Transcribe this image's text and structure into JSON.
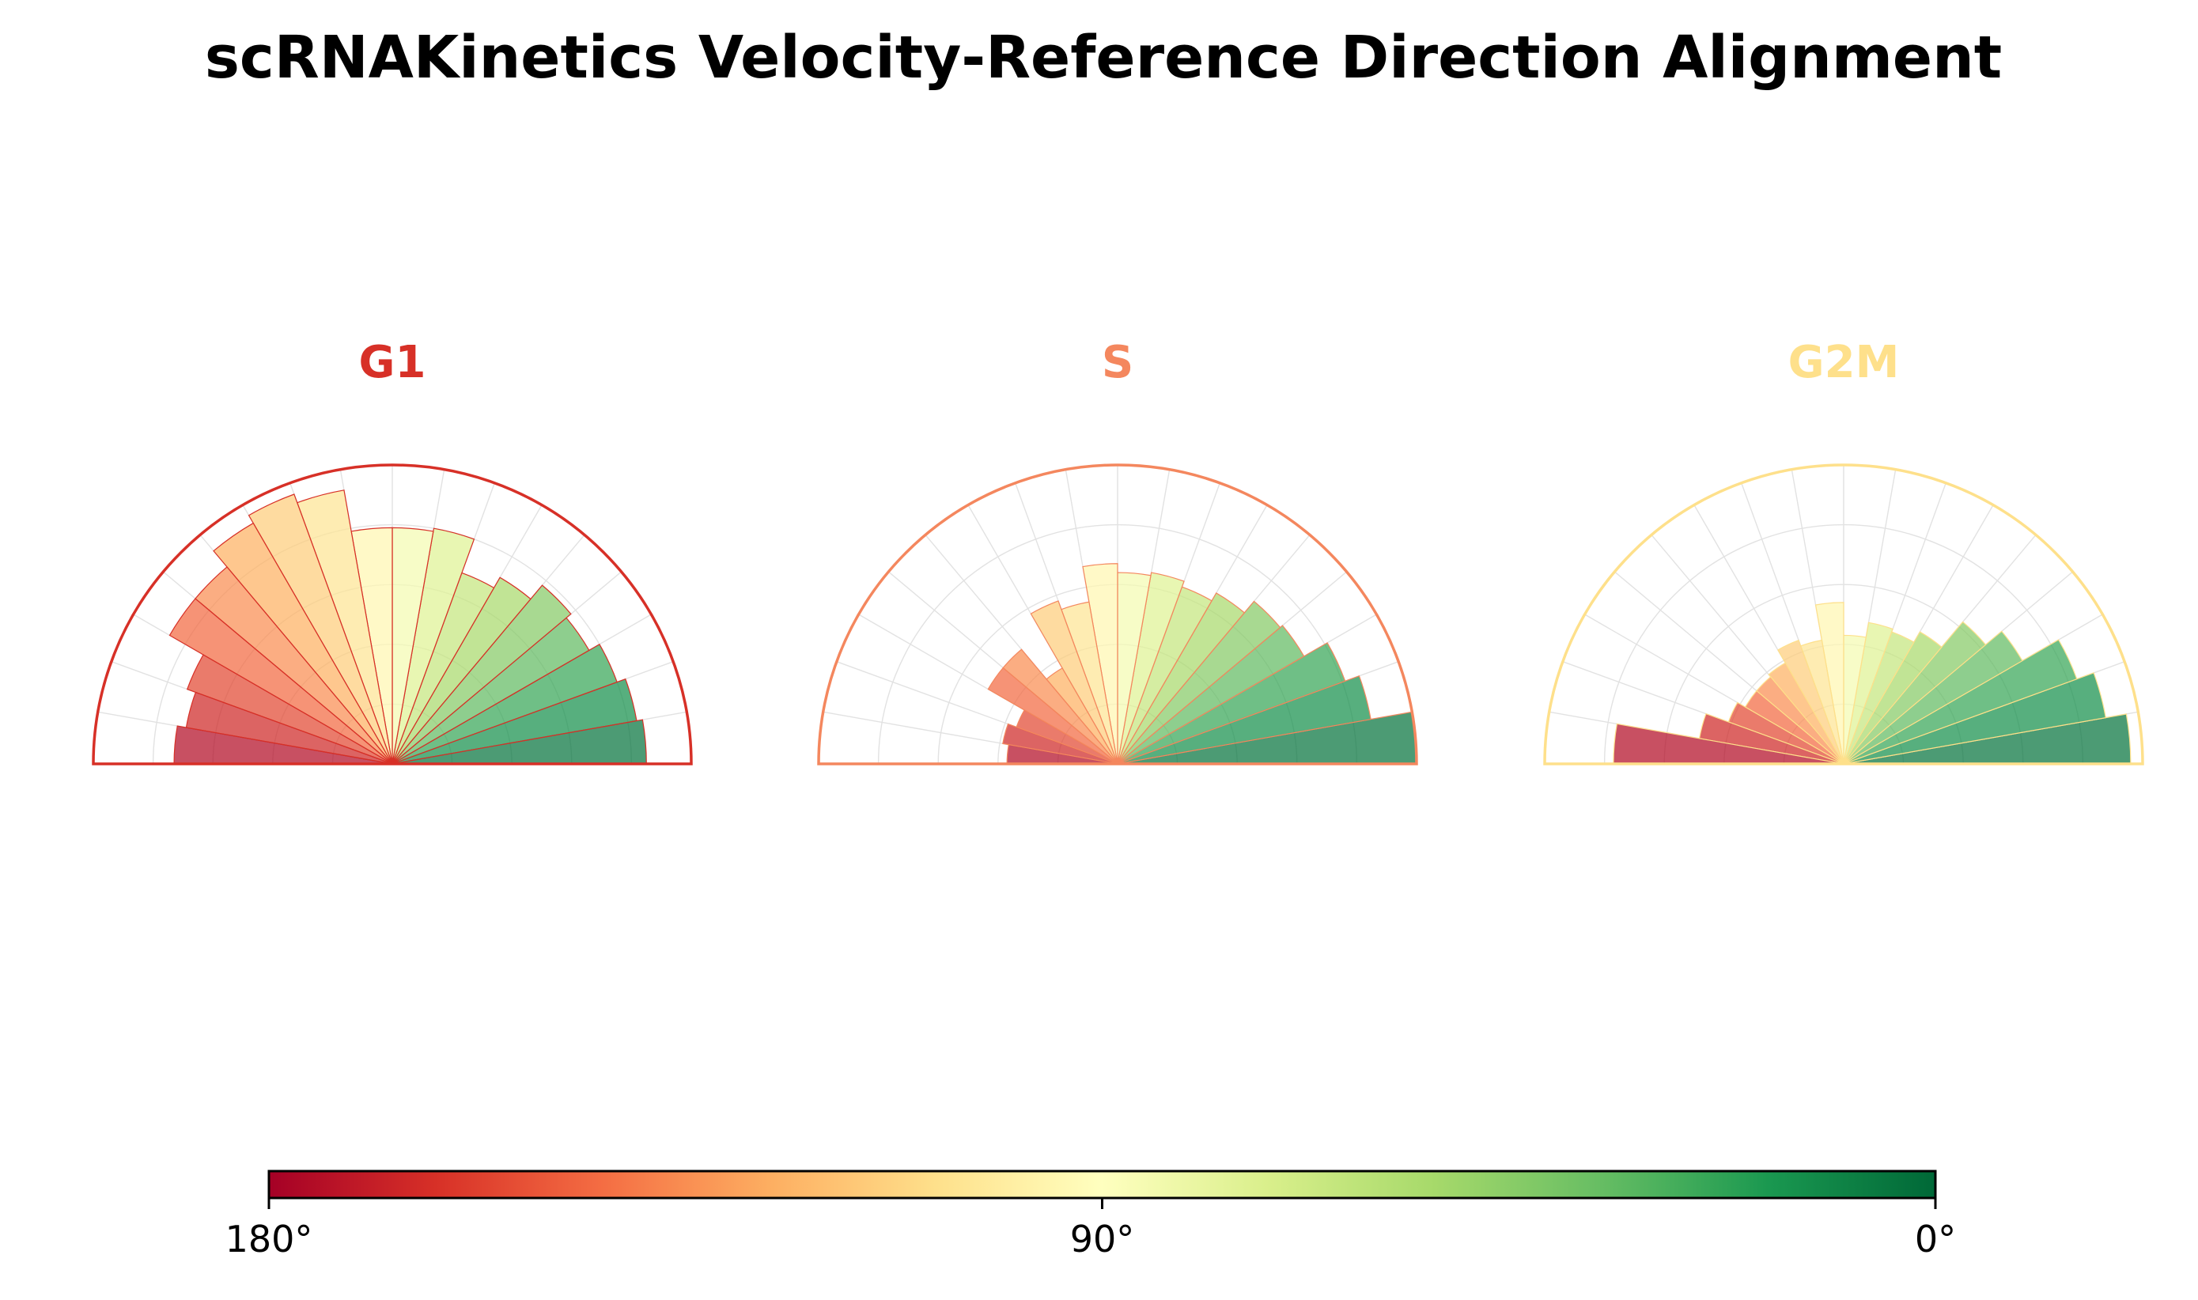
{
  "chart_data": {
    "type": "polar-bar",
    "title": "scRNAKinetics Velocity-Reference Direction Alignment",
    "angle_unit": "degrees",
    "angle_range": [
      0,
      180
    ],
    "bin_width": 10,
    "bin_starts": [
      0,
      10,
      20,
      30,
      40,
      50,
      60,
      70,
      80,
      90,
      100,
      110,
      120,
      130,
      140,
      150,
      160,
      170
    ],
    "radius_max": 1.0,
    "panels": [
      {
        "name": "G1",
        "color": "#d73027",
        "values": [
          0.85,
          0.83,
          0.8,
          0.76,
          0.78,
          0.72,
          0.68,
          0.8,
          0.79,
          0.79,
          0.93,
          0.96,
          0.93,
          0.86,
          0.86,
          0.73,
          0.7,
          0.73
        ]
      },
      {
        "name": "S",
        "color": "#f4875e",
        "values": [
          1.0,
          0.86,
          0.81,
          0.72,
          0.71,
          0.66,
          0.63,
          0.65,
          0.64,
          0.67,
          0.55,
          0.58,
          0.37,
          0.5,
          0.5,
          0.36,
          0.39,
          0.37
        ]
      },
      {
        "name": "G2M",
        "color": "#fee08b",
        "values": [
          0.96,
          0.89,
          0.83,
          0.69,
          0.62,
          0.51,
          0.47,
          0.48,
          0.43,
          0.54,
          0.42,
          0.44,
          0.39,
          0.38,
          0.38,
          0.41,
          0.49,
          0.77
        ]
      }
    ],
    "colorbar": {
      "colormap": "RdYlGn",
      "tick_labels": [
        "180°",
        "90°",
        "0°"
      ],
      "tick_values": [
        180,
        90,
        0
      ]
    }
  }
}
